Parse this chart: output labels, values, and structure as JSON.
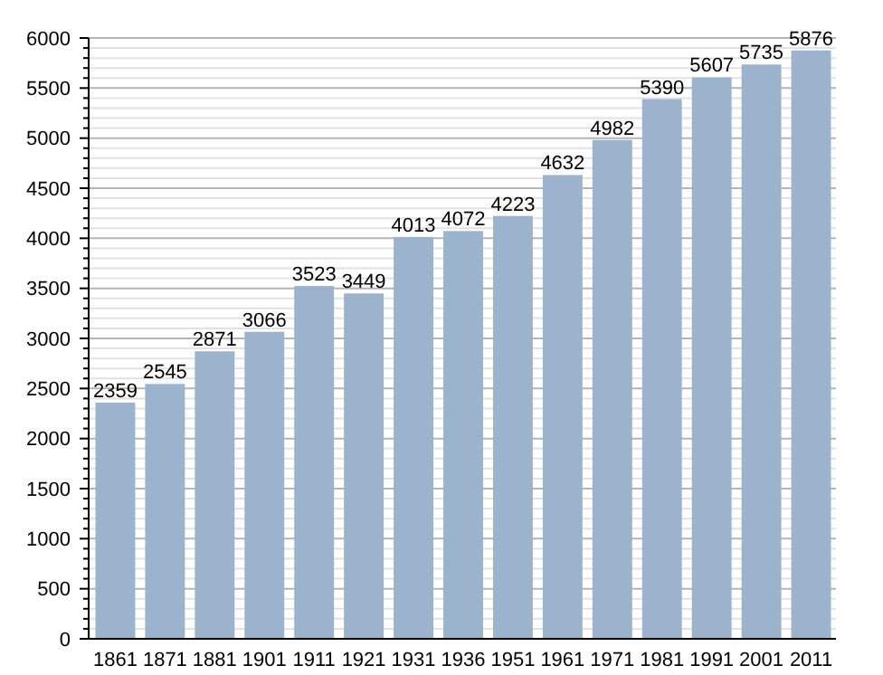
{
  "chart_data": {
    "type": "bar",
    "categories": [
      "1861",
      "1871",
      "1881",
      "1901",
      "1911",
      "1921",
      "1931",
      "1936",
      "1951",
      "1961",
      "1971",
      "1981",
      "1991",
      "2001",
      "2011"
    ],
    "values": [
      2359,
      2545,
      2871,
      3066,
      3523,
      3449,
      4013,
      4072,
      4223,
      4632,
      4982,
      5390,
      5607,
      5735,
      5876
    ],
    "color": "#9bb3cd",
    "data_labels": true,
    "grid": "y",
    "ylim": [
      0,
      6000
    ],
    "yticks": [
      0,
      {
        "value": 100,
        "label": null
      },
      {
        "value": 200,
        "label": null
      },
      {
        "value": 300,
        "label": null
      },
      {
        "value": 400,
        "label": null
      },
      500,
      {
        "value": 600,
        "label": null
      },
      {
        "value": 700,
        "label": null
      },
      {
        "value": 800,
        "label": null
      },
      {
        "value": 900,
        "label": null
      },
      1000,
      {
        "value": 1100,
        "label": null
      },
      {
        "value": 1200,
        "label": null
      },
      {
        "value": 1300,
        "label": null
      },
      {
        "value": 1400,
        "label": null
      },
      1500,
      {
        "value": 1600,
        "label": null
      },
      {
        "value": 1700,
        "label": null
      },
      {
        "value": 1800,
        "label": null
      },
      {
        "value": 1900,
        "label": null
      },
      2000,
      {
        "value": 2100,
        "label": null
      },
      {
        "value": 2200,
        "label": null
      },
      {
        "value": 2300,
        "label": null
      },
      {
        "value": 2400,
        "label": null
      },
      2500,
      {
        "value": 2600,
        "label": null
      },
      {
        "value": 2700,
        "label": null
      },
      {
        "value": 2800,
        "label": null
      },
      {
        "value": 2900,
        "label": null
      },
      3000,
      {
        "value": 3100,
        "label": null
      },
      {
        "value": 3200,
        "label": null
      },
      {
        "value": 3300,
        "label": null
      },
      {
        "value": 3400,
        "label": null
      },
      3500,
      {
        "value": 3600,
        "label": null
      },
      {
        "value": 3700,
        "label": null
      },
      {
        "value": 3800,
        "label": null
      },
      {
        "value": 3900,
        "label": null
      },
      4000,
      {
        "value": 4100,
        "label": null
      },
      {
        "value": 4200,
        "label": null
      },
      {
        "value": 4300,
        "label": null
      },
      {
        "value": 4400,
        "label": null
      },
      4500,
      {
        "value": 4600,
        "label": null
      },
      {
        "value": 4700,
        "label": null
      },
      {
        "value": 4800,
        "label": null
      },
      {
        "value": 4900,
        "label": null
      },
      5000,
      {
        "value": 5100,
        "label": null
      },
      {
        "value": 5200,
        "label": null
      },
      {
        "value": 5300,
        "label": null
      },
      {
        "value": 5400,
        "label": null
      },
      5500,
      {
        "value": 5600,
        "label": null
      },
      {
        "value": 5700,
        "label": null
      },
      {
        "value": 5800,
        "label": null
      },
      {
        "value": 5900,
        "label": null
      },
      6000
    ]
  }
}
